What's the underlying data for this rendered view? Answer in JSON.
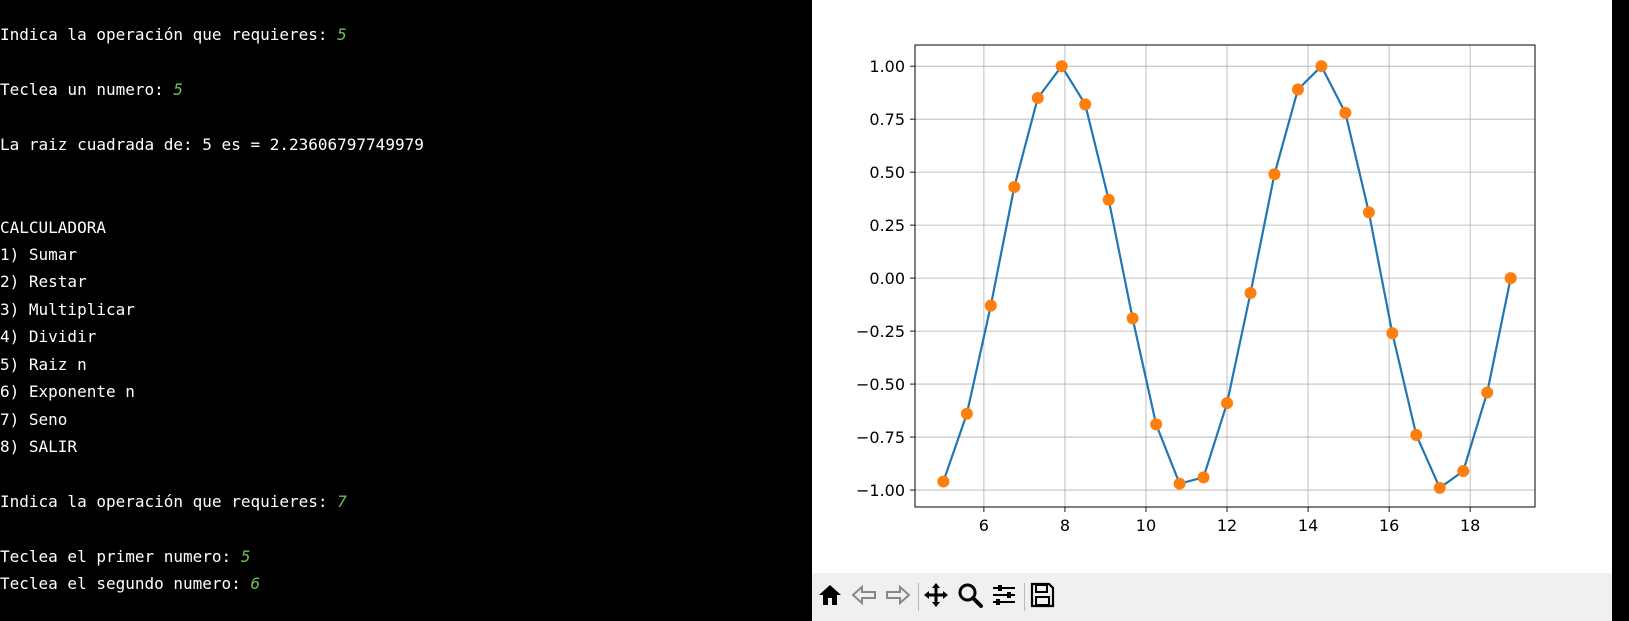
{
  "terminal": {
    "lines": [
      {
        "text": "Indica la operación que requieres: ",
        "input": "5"
      },
      {
        "text": "Teclea un numero: ",
        "input": "5"
      },
      {
        "text": "La raiz cuadrada de: 5 es = 2.23606797749979",
        "input": ""
      },
      {
        "text": "CALCULADORA",
        "input": ""
      },
      {
        "text": "1) Sumar",
        "input": ""
      },
      {
        "text": "2) Restar",
        "input": ""
      },
      {
        "text": "3) Multiplicar",
        "input": ""
      },
      {
        "text": "4) Dividir",
        "input": ""
      },
      {
        "text": "5) Raiz n",
        "input": ""
      },
      {
        "text": "6) Exponente n",
        "input": ""
      },
      {
        "text": "7) Seno",
        "input": ""
      },
      {
        "text": "8) SALIR",
        "input": ""
      },
      {
        "text": "Indica la operación que requieres: ",
        "input": "7"
      },
      {
        "text": "Teclea el primer numero: ",
        "input": "5"
      },
      {
        "text": "Teclea el segundo numero: ",
        "input": "6"
      }
    ],
    "input_color": "#6fbf5a"
  },
  "toolbar": {
    "buttons": [
      "home-icon",
      "back-arrow-icon",
      "forward-arrow-icon",
      "pan-move-icon",
      "zoom-magnifier-icon",
      "configure-subplots-icon",
      "save-floppy-icon"
    ]
  },
  "chart_data": {
    "type": "line",
    "title": "",
    "xlabel": "",
    "ylabel": "",
    "xlim": [
      4.3,
      19.6
    ],
    "ylim": [
      -1.08,
      1.1
    ],
    "xticks": [
      6,
      8,
      10,
      12,
      14,
      16,
      18
    ],
    "yticks": [
      -1.0,
      -0.75,
      -0.5,
      -0.25,
      0.0,
      0.25,
      0.5,
      0.75,
      1.0
    ],
    "ytick_labels": [
      "−1.00",
      "−0.75",
      "−0.50",
      "−0.25",
      "0.00",
      "0.25",
      "0.50",
      "0.75",
      "1.00"
    ],
    "grid": true,
    "x": [
      5.0,
      5.58,
      6.17,
      6.75,
      7.33,
      7.92,
      8.5,
      9.08,
      9.67,
      10.25,
      10.83,
      11.42,
      12.0,
      12.58,
      13.17,
      13.75,
      14.33,
      14.92,
      15.5,
      16.08,
      16.67,
      17.25,
      17.83,
      18.42,
      19.0
    ],
    "y": [
      -0.96,
      -0.64,
      -0.13,
      0.43,
      0.85,
      1.0,
      0.82,
      0.37,
      -0.19,
      -0.69,
      -0.97,
      -0.94,
      -0.59,
      -0.07,
      0.49,
      0.89,
      1.0,
      0.78,
      0.31,
      -0.26,
      -0.74,
      -0.99,
      -0.91,
      -0.54,
      0.0
    ],
    "line_color": "#1f77b4",
    "marker_color": "#ff7f0e"
  }
}
